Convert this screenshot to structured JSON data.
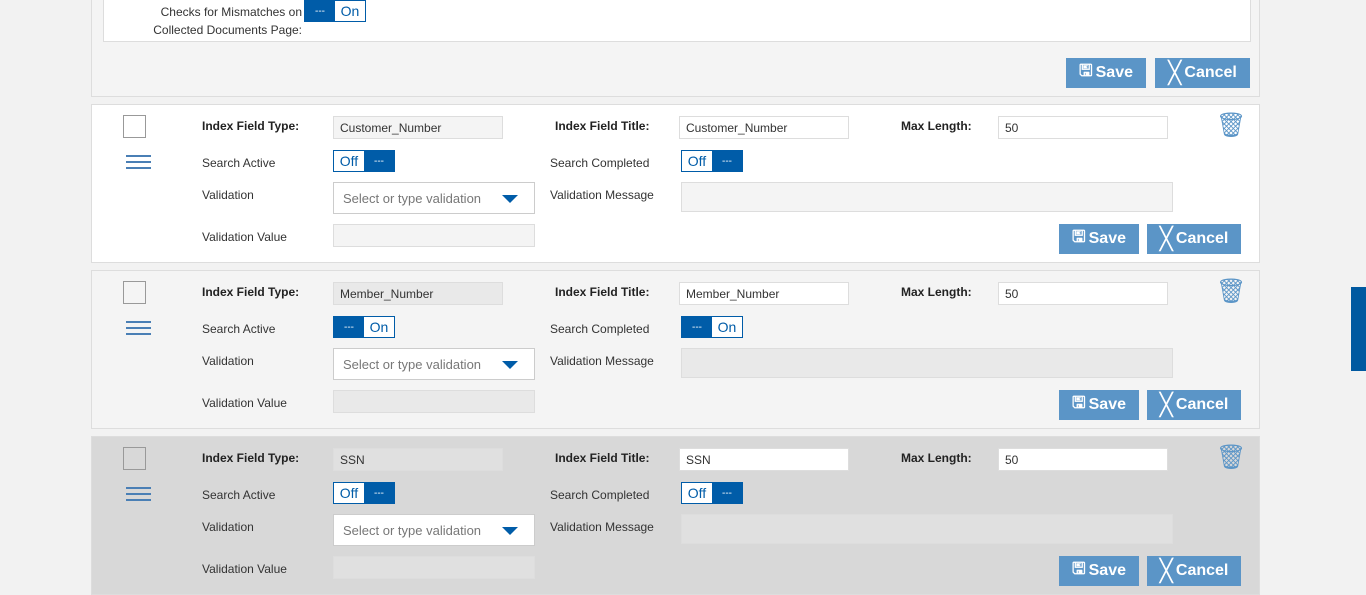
{
  "settings": {
    "mismatch_label": "Checks for Mismatches on Collected Documents Page:",
    "mismatch_toggle": {
      "state": "On",
      "knob": "---"
    },
    "save_label": "Save",
    "cancel_label": "Cancel"
  },
  "labels": {
    "index_field_type": "Index Field Type:",
    "index_field_title": "Index Field Title:",
    "max_length": "Max Length:",
    "search_active": "Search Active",
    "search_completed": "Search Completed",
    "validation": "Validation",
    "validation_message": "Validation Message",
    "validation_value": "Validation Value",
    "save": "Save",
    "cancel": "Cancel",
    "knob": "---"
  },
  "colors": {
    "accent": "#005ca8",
    "button": "#5b95c7"
  },
  "cards": [
    {
      "bg": "#ffffff",
      "input_bg": "#f4f4f4",
      "type": "Customer_Number",
      "title": "Customer_Number",
      "max_length": "50",
      "search_active": "Off",
      "search_completed": "Off",
      "validation_placeholder": "Select or type validation",
      "validation_message": "",
      "validation_value": ""
    },
    {
      "bg": "#f4f4f4",
      "input_bg": "#e9e9e9",
      "type": "Member_Number",
      "title": "Member_Number",
      "max_length": "50",
      "search_active": "On",
      "search_completed": "On",
      "validation_placeholder": "Select or type validation",
      "validation_message": "",
      "validation_value": ""
    },
    {
      "bg": "#d8d8d8",
      "input_bg": "#e0e0e0",
      "type": "SSN",
      "title": "SSN",
      "max_length": "50",
      "search_active": "Off",
      "search_completed": "Off",
      "validation_placeholder": "Select or type validation",
      "validation_message": "",
      "validation_value": ""
    }
  ]
}
